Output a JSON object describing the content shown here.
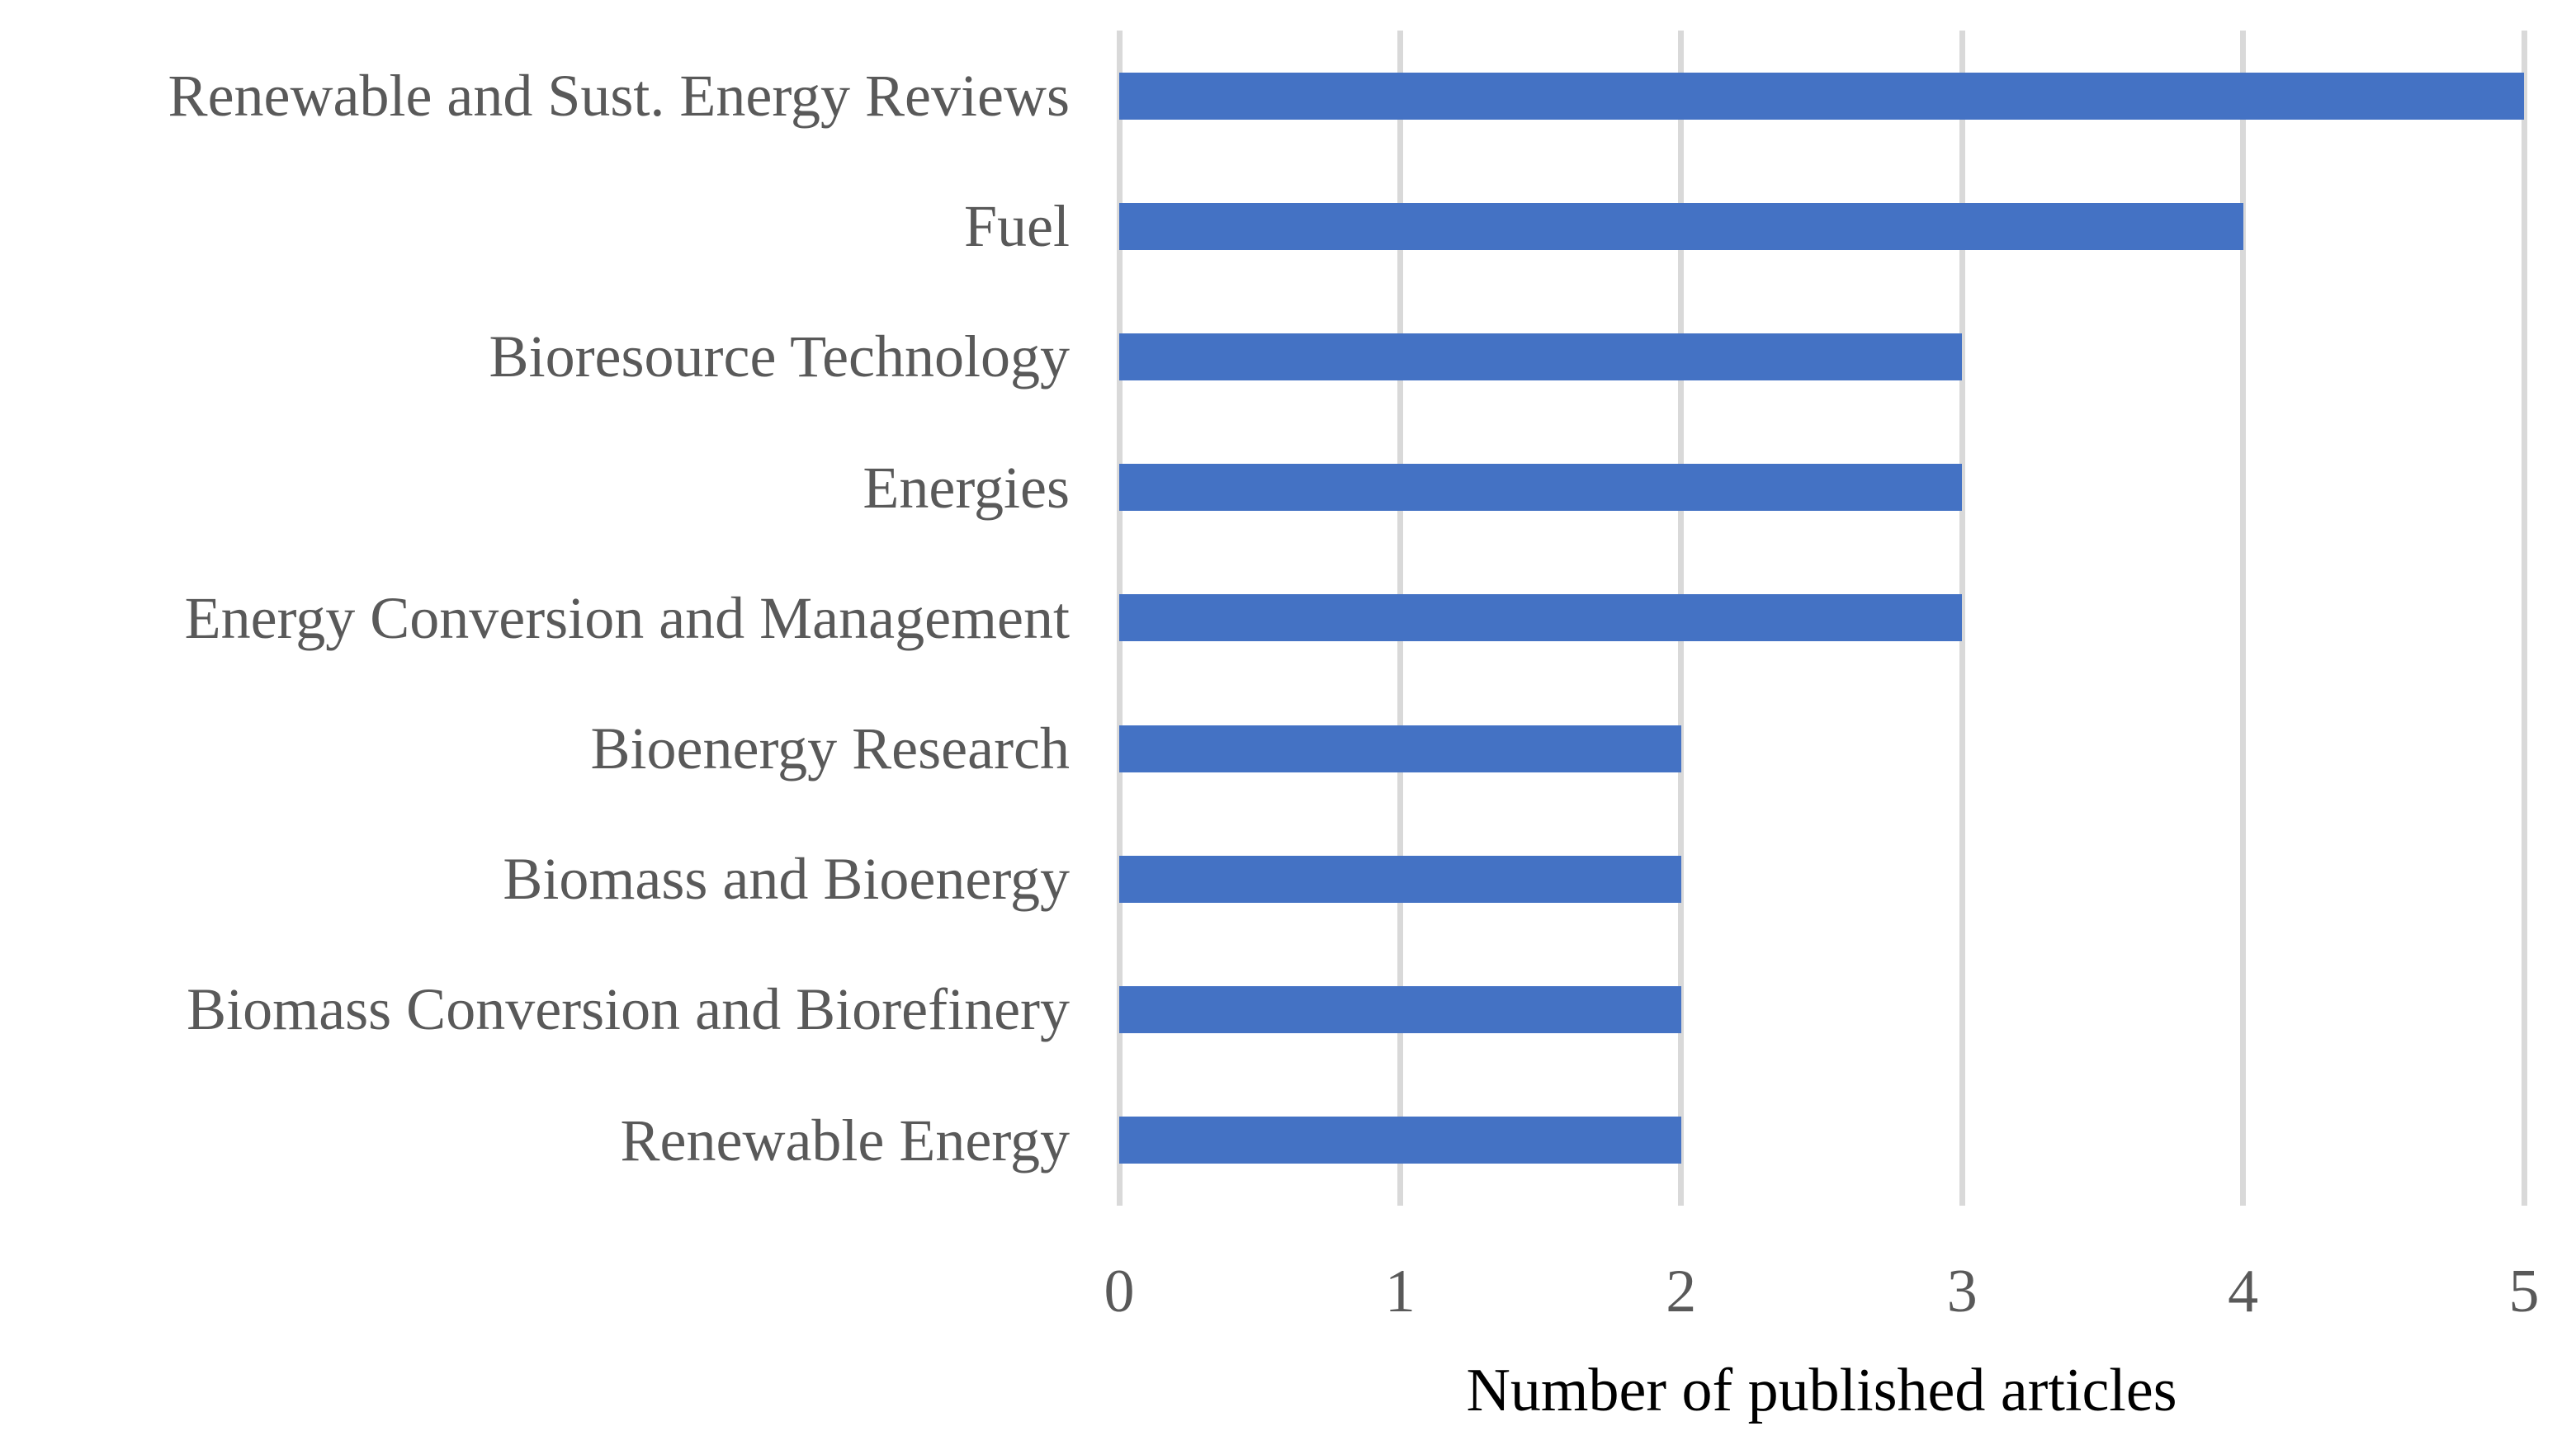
{
  "chart_data": {
    "type": "bar",
    "orientation": "horizontal",
    "title": "",
    "xlabel": "Number of published articles",
    "ylabel": "",
    "categories": [
      "Renewable and Sust. Energy Reviews",
      "Fuel",
      "Bioresource Technology",
      "Energies",
      "Energy Conversion and Management",
      "Bioenergy Research",
      "Biomass and Bioenergy",
      "Biomass Conversion and Biorefinery",
      "Renewable Energy"
    ],
    "values": [
      5,
      4,
      3,
      3,
      3,
      2,
      2,
      2,
      2
    ],
    "xlim": [
      0,
      5
    ],
    "xticks": [
      0,
      1,
      2,
      3,
      4,
      5
    ],
    "grid": true,
    "legend": "none",
    "bar_color": "#4472C4",
    "gridline_color": "#D9D9D9",
    "tick_label_color": "#595959",
    "category_label_color": "#595959",
    "axis_title_color": "#000000",
    "background_color": "#FFFFFF"
  }
}
